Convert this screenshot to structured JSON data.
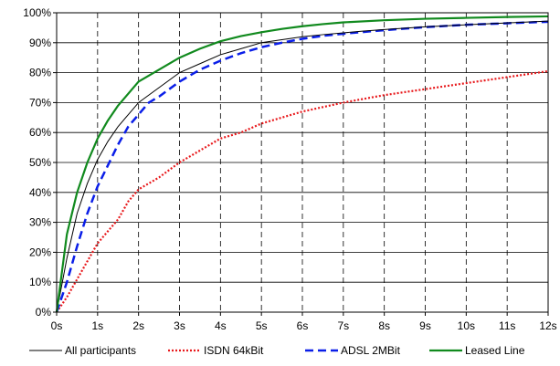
{
  "chart_data": {
    "type": "line",
    "xlim": [
      0,
      12
    ],
    "ylim": [
      0,
      100
    ],
    "x_ticks": [
      "0s",
      "1s",
      "2s",
      "3s",
      "4s",
      "5s",
      "6s",
      "7s",
      "8s",
      "9s",
      "10s",
      "11s",
      "12s"
    ],
    "y_ticks": [
      "0%",
      "10%",
      "20%",
      "30%",
      "40%",
      "50%",
      "60%",
      "70%",
      "80%",
      "90%",
      "100%"
    ],
    "grid": {
      "x_dashed": true,
      "y_solid": true
    },
    "legend_position": "bottom",
    "series": [
      {
        "name": "All participants",
        "color": "#000000",
        "style": "solid-thin",
        "points": [
          [
            0,
            0
          ],
          [
            0.25,
            18
          ],
          [
            0.5,
            33
          ],
          [
            0.75,
            43
          ],
          [
            1,
            51
          ],
          [
            1.25,
            57
          ],
          [
            1.5,
            62
          ],
          [
            1.75,
            66
          ],
          [
            2,
            70
          ],
          [
            2.5,
            75
          ],
          [
            3,
            80
          ],
          [
            3.5,
            83
          ],
          [
            4,
            86
          ],
          [
            4.5,
            88
          ],
          [
            5,
            90
          ],
          [
            5.5,
            91
          ],
          [
            6,
            92
          ],
          [
            6.5,
            92.7
          ],
          [
            7,
            93.3
          ],
          [
            7.5,
            93.9
          ],
          [
            8,
            94.4
          ],
          [
            9,
            95.3
          ],
          [
            10,
            96
          ],
          [
            11,
            96.6
          ],
          [
            12,
            97.2
          ]
        ]
      },
      {
        "name": "ISDN 64kBit",
        "color": "#e8191c",
        "style": "dotted",
        "points": [
          [
            0,
            0
          ],
          [
            0.25,
            5
          ],
          [
            0.5,
            11
          ],
          [
            0.75,
            17
          ],
          [
            1,
            23
          ],
          [
            1.25,
            27
          ],
          [
            1.5,
            31
          ],
          [
            1.75,
            37
          ],
          [
            2,
            41
          ],
          [
            2.5,
            45
          ],
          [
            3,
            50
          ],
          [
            3.5,
            54
          ],
          [
            4,
            58
          ],
          [
            4.5,
            60
          ],
          [
            5,
            63
          ],
          [
            5.5,
            65
          ],
          [
            6,
            67
          ],
          [
            6.5,
            68.5
          ],
          [
            7,
            70
          ],
          [
            8,
            72.5
          ],
          [
            9,
            74.5
          ],
          [
            10,
            76.5
          ],
          [
            11,
            78.5
          ],
          [
            12,
            80.5
          ]
        ]
      },
      {
        "name": "ADSL 2MBit",
        "color": "#0a1ee8",
        "style": "dashed",
        "points": [
          [
            0,
            0
          ],
          [
            0.25,
            10
          ],
          [
            0.5,
            22
          ],
          [
            0.75,
            33
          ],
          [
            1,
            42
          ],
          [
            1.25,
            49
          ],
          [
            1.5,
            56
          ],
          [
            1.75,
            62
          ],
          [
            2,
            66
          ],
          [
            2.25,
            70
          ],
          [
            2.5,
            72
          ],
          [
            3,
            77
          ],
          [
            3.5,
            81
          ],
          [
            4,
            84
          ],
          [
            4.5,
            86.5
          ],
          [
            5,
            88.5
          ],
          [
            5.5,
            90
          ],
          [
            6,
            91.3
          ],
          [
            6.5,
            92.3
          ],
          [
            7,
            93
          ],
          [
            7.5,
            93.6
          ],
          [
            8,
            94.2
          ],
          [
            9,
            95.2
          ],
          [
            10,
            96
          ],
          [
            11,
            96.5
          ],
          [
            12,
            97
          ]
        ]
      },
      {
        "name": "Leased Line",
        "color": "#118a1e",
        "style": "solid",
        "points": [
          [
            0,
            0
          ],
          [
            0.25,
            26
          ],
          [
            0.5,
            40
          ],
          [
            0.75,
            50
          ],
          [
            1,
            58
          ],
          [
            1.25,
            64
          ],
          [
            1.5,
            69
          ],
          [
            1.75,
            73
          ],
          [
            2,
            77
          ],
          [
            2.5,
            81
          ],
          [
            3,
            85
          ],
          [
            3.5,
            88
          ],
          [
            4,
            90.5
          ],
          [
            4.5,
            92.2
          ],
          [
            5,
            93.5
          ],
          [
            5.5,
            94.6
          ],
          [
            6,
            95.5
          ],
          [
            6.5,
            96.2
          ],
          [
            7,
            96.8
          ],
          [
            8,
            97.5
          ],
          [
            9,
            98
          ],
          [
            10,
            98.3
          ],
          [
            11,
            98.6
          ],
          [
            12,
            98.8
          ]
        ]
      }
    ]
  }
}
